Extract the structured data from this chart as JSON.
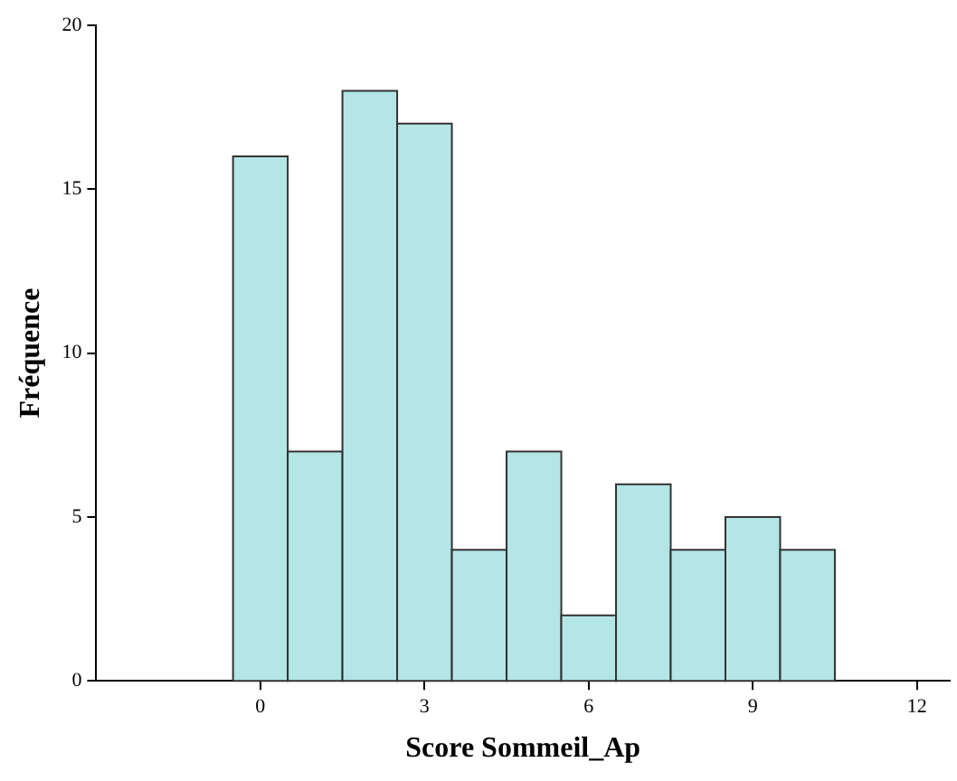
{
  "chart_data": {
    "type": "histogram",
    "xlabel": "Score Sommeil_Ap",
    "ylabel": "Fréquence",
    "bins": [
      -0.5,
      0.5,
      1.5,
      2.5,
      3.5,
      4.5,
      5.5,
      6.5,
      7.5,
      8.5,
      9.5,
      10.5
    ],
    "values": [
      16,
      7,
      18,
      17,
      4,
      7,
      2,
      6,
      4,
      5,
      4
    ],
    "color": "#b4e6e6",
    "xlim": [
      -3,
      12.6
    ],
    "xticks": [
      0,
      3,
      6,
      9,
      12
    ],
    "ylim": [
      0,
      20
    ],
    "yticks": [
      0,
      5,
      10,
      15,
      20
    ],
    "grid": false,
    "legend": false
  }
}
